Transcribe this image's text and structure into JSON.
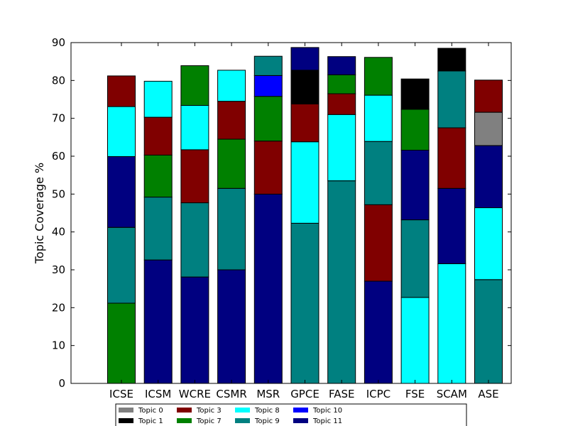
{
  "chart_data": {
    "type": "bar",
    "stacked": true,
    "ylabel": "Topic Coverage %",
    "xlabel": "",
    "title": "",
    "ylim": [
      0,
      90
    ],
    "yticks": [
      0,
      10,
      20,
      30,
      40,
      50,
      60,
      70,
      80,
      90
    ],
    "categories": [
      "ICSE",
      "ICSM",
      "WCRE",
      "CSMR",
      "MSR",
      "GPCE",
      "FASE",
      "ICPC",
      "FSE",
      "SCAM",
      "ASE"
    ],
    "grid": false,
    "legend_position": "bottom-center",
    "series": [
      {
        "name": "Topic 0",
        "color": "#808080",
        "values": [
          0,
          0,
          0,
          0,
          0,
          0,
          0,
          0,
          0,
          0,
          8.8
        ]
      },
      {
        "name": "Topic 1",
        "color": "#000000",
        "values": [
          0,
          0,
          0,
          0,
          0,
          8.9,
          0,
          0,
          8.0,
          6.0,
          0
        ]
      },
      {
        "name": "Topic 3",
        "color": "#800000",
        "values": [
          8.1,
          10.0,
          14.0,
          10.0,
          14.0,
          10.0,
          5.5,
          20.2,
          0,
          16.0,
          8.5
        ]
      },
      {
        "name": "Topic 7",
        "color": "#008000",
        "values": [
          21.2,
          11.1,
          10.5,
          13.0,
          11.8,
          0,
          5.0,
          10.0,
          10.8,
          0,
          0
        ]
      },
      {
        "name": "Topic 8",
        "color": "#00ffff",
        "values": [
          13.2,
          9.5,
          11.7,
          8.2,
          0,
          21.5,
          17.5,
          12.2,
          22.7,
          31.6,
          19.0
        ]
      },
      {
        "name": "Topic 9",
        "color": "#008080",
        "values": [
          20.0,
          16.6,
          19.6,
          21.5,
          5.1,
          42.3,
          53.5,
          16.7,
          20.5,
          15.0,
          27.4
        ]
      },
      {
        "name": "Topic 10",
        "color": "#0000ff",
        "values": [
          0,
          0,
          0,
          0,
          5.5,
          0,
          0,
          0,
          0,
          0,
          0
        ]
      },
      {
        "name": "Topic 11",
        "color": "#000080",
        "values": [
          18.7,
          32.6,
          28.1,
          30.0,
          50.0,
          6.0,
          4.8,
          27.0,
          18.4,
          19.9,
          16.4
        ]
      }
    ],
    "stack_order_per_category": [
      [
        "Topic 7",
        "Topic 9",
        "Topic 11",
        "Topic 8",
        "Topic 3"
      ],
      [
        "Topic 11",
        "Topic 9",
        "Topic 7",
        "Topic 3",
        "Topic 8"
      ],
      [
        "Topic 11",
        "Topic 9",
        "Topic 3",
        "Topic 8",
        "Topic 7"
      ],
      [
        "Topic 11",
        "Topic 9",
        "Topic 7",
        "Topic 3",
        "Topic 8"
      ],
      [
        "Topic 11",
        "Topic 3",
        "Topic 7",
        "Topic 10",
        "Topic 9"
      ],
      [
        "Topic 9",
        "Topic 8",
        "Topic 3",
        "Topic 1",
        "Topic 11"
      ],
      [
        "Topic 9",
        "Topic 8",
        "Topic 3",
        "Topic 7",
        "Topic 11"
      ],
      [
        "Topic 11",
        "Topic 3",
        "Topic 9",
        "Topic 8",
        "Topic 7"
      ],
      [
        "Topic 8",
        "Topic 9",
        "Topic 11",
        "Topic 7",
        "Topic 1"
      ],
      [
        "Topic 8",
        "Topic 11",
        "Topic 3",
        "Topic 9",
        "Topic 1"
      ],
      [
        "Topic 9",
        "Topic 8",
        "Topic 11",
        "Topic 0",
        "Topic 3"
      ]
    ]
  }
}
